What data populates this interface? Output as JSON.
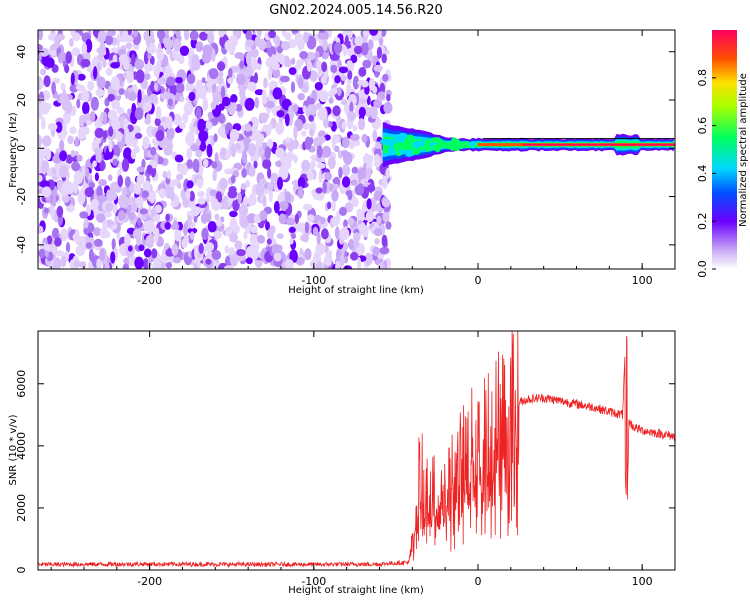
{
  "title": "GN02.2024.005.14.56.R20",
  "chart_data": [
    {
      "type": "heatmap",
      "xlabel": "Height of straight line (km)",
      "ylabel": "Frequency (Hz)",
      "xlim": [
        -268,
        120
      ],
      "ylim": [
        -50,
        49
      ],
      "xticks": [
        -200,
        -100,
        0,
        100
      ],
      "yticks": [
        -40,
        -20,
        0,
        20,
        40
      ],
      "colorbar": {
        "label": "Normalized spectral amplitude",
        "range": [
          0,
          1
        ],
        "ticks": [
          "0.0",
          "0.2",
          "0.4",
          "0.6",
          "0.8"
        ]
      },
      "regions": [
        {
          "x_range": [
            -268,
            -58
          ],
          "description_values": {
            "noise_amplitude": [
              0.05,
              0.3
            ]
          }
        },
        {
          "x_range": [
            -58,
            120
          ],
          "signal_frequency": 1.5,
          "band_halfwidth_hz": [
            8,
            2
          ],
          "peak_amplitude": 0.9
        }
      ],
      "grid": false
    },
    {
      "type": "line",
      "xlabel": "Height of straight line (km)",
      "ylabel": "SNR (10 * v/v)",
      "xlim": [
        -268,
        120
      ],
      "ylim": [
        0,
        7700
      ],
      "xticks": [
        -200,
        -100,
        0,
        100
      ],
      "yticks": [
        0,
        2000,
        4000,
        6000
      ],
      "color": "#ee2222",
      "grid": false,
      "series": [
        {
          "name": "",
          "x": [
            -268,
            -200,
            -150,
            -100,
            -60,
            -42,
            -40,
            -38,
            -35,
            -30,
            -25,
            -20,
            -15,
            -10,
            -5,
            0,
            5,
            10,
            15,
            20,
            25,
            30,
            40,
            50,
            60,
            70,
            80,
            88,
            90,
            91,
            92,
            93,
            95,
            100,
            110,
            120
          ],
          "y": [
            180,
            190,
            180,
            180,
            190,
            250,
            900,
            2500,
            3000,
            2200,
            2600,
            2800,
            3000,
            3400,
            3800,
            3900,
            4200,
            4600,
            4900,
            5200,
            5400,
            5500,
            5550,
            5450,
            5350,
            5250,
            5100,
            5000,
            7400,
            2400,
            4800,
            4700,
            4600,
            4500,
            4400,
            4300
          ]
        }
      ]
    }
  ]
}
